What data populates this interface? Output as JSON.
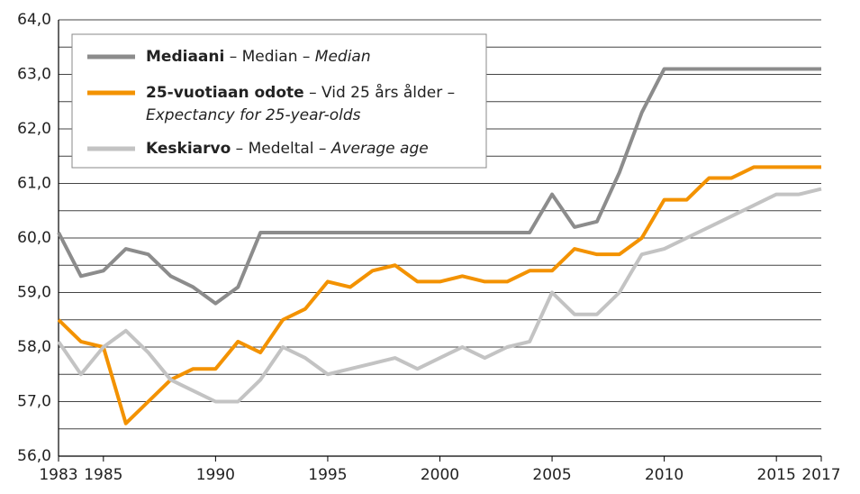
{
  "chart_data": {
    "type": "line",
    "x": [
      1983,
      1984,
      1985,
      1986,
      1987,
      1988,
      1989,
      1990,
      1991,
      1992,
      1993,
      1994,
      1995,
      1996,
      1997,
      1998,
      1999,
      2000,
      2001,
      2002,
      2003,
      2004,
      2005,
      2006,
      2007,
      2008,
      2009,
      2010,
      2011,
      2012,
      2013,
      2014,
      2015,
      2016,
      2017
    ],
    "series": [
      {
        "name": [
          "Mediaani",
          " – Median – ",
          "Median"
        ],
        "color": "#8c8c8c",
        "values": [
          60.1,
          59.3,
          59.4,
          59.8,
          59.7,
          59.3,
          59.1,
          58.8,
          59.1,
          60.1,
          60.1,
          60.1,
          60.1,
          60.1,
          60.1,
          60.1,
          60.1,
          60.1,
          60.1,
          60.1,
          60.1,
          60.1,
          60.8,
          60.2,
          60.3,
          61.2,
          62.3,
          63.1,
          63.1,
          63.1,
          63.1,
          63.1,
          63.1,
          63.1,
          63.1
        ]
      },
      {
        "name": [
          "25-vuotiaan odote",
          " – Vid 25 års ålder –",
          "Expectancy for 25-year-olds"
        ],
        "color": "#f39200",
        "values": [
          58.5,
          58.1,
          58.0,
          56.6,
          57.0,
          57.4,
          57.6,
          57.6,
          58.1,
          57.9,
          58.5,
          58.7,
          59.2,
          59.1,
          59.4,
          59.5,
          59.2,
          59.2,
          59.3,
          59.2,
          59.2,
          59.4,
          59.4,
          59.8,
          59.7,
          59.7,
          60.0,
          60.7,
          60.7,
          61.1,
          61.1,
          61.3,
          61.3,
          61.3,
          61.3
        ]
      },
      {
        "name": [
          "Keskiarvo",
          " – Medeltal – ",
          "Average age"
        ],
        "color": "#c3c3c3",
        "values": [
          58.1,
          57.5,
          58.0,
          58.3,
          57.9,
          57.4,
          57.2,
          57.0,
          57.0,
          57.4,
          58.0,
          57.8,
          57.5,
          57.6,
          57.7,
          57.8,
          57.6,
          57.8,
          58.0,
          57.8,
          58.0,
          58.1,
          59.0,
          58.6,
          58.6,
          59.0,
          59.7,
          59.8,
          60.0,
          60.2,
          60.4,
          60.6,
          60.8,
          60.8,
          60.9
        ]
      }
    ],
    "xlim": [
      1983,
      2017
    ],
    "xticks": [
      1983,
      1985,
      1990,
      1995,
      2000,
      2005,
      2010,
      2015,
      2017
    ],
    "ylim": [
      56,
      64
    ],
    "yticks": [
      {
        "value": 56,
        "label": "56,0"
      },
      {
        "value": 57,
        "label": "57,0"
      },
      {
        "value": 58,
        "label": "58,0"
      },
      {
        "value": 59,
        "label": "59,0"
      },
      {
        "value": 60,
        "label": "60,0"
      },
      {
        "value": 61,
        "label": "61,0"
      },
      {
        "value": 62,
        "label": "62,0"
      },
      {
        "value": 63,
        "label": "63,0"
      },
      {
        "value": 64,
        "label": "64,0"
      }
    ],
    "ygrid": [
      56.5,
      57,
      57.5,
      58,
      58.5,
      59,
      59.5,
      60,
      60.5,
      61,
      61.5,
      62,
      62.5,
      63,
      63.5,
      64
    ],
    "grid": true,
    "legend": "upper left"
  }
}
